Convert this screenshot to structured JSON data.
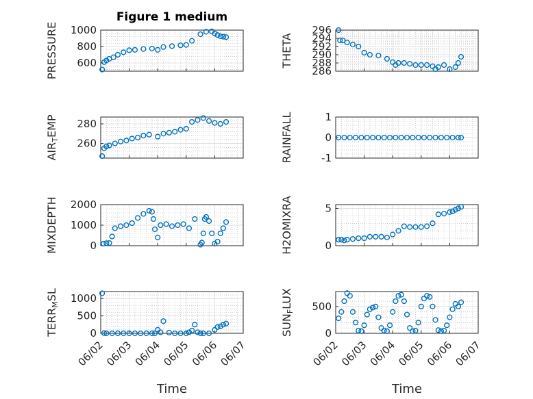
{
  "figure": {
    "title": "Figure 1 medium",
    "xlabel": "Time",
    "x_ticks": [
      "06/02",
      "06/03",
      "06/04",
      "06/05",
      "06/06",
      "06/07"
    ]
  },
  "chart_data": [
    {
      "type": "scatter",
      "ylabel": "PRESSURE",
      "ylim": [
        500,
        1000
      ],
      "yticks": [
        600,
        800,
        1000
      ],
      "x": [
        0.05,
        0.12,
        0.2,
        0.3,
        0.45,
        0.6,
        0.8,
        1.0,
        1.2,
        1.5,
        1.8,
        2.0,
        2.2,
        2.5,
        2.8,
        3.0,
        3.2,
        3.5,
        3.7,
        3.9,
        4.0,
        4.1,
        4.2,
        4.3,
        4.4
      ],
      "y": [
        520,
        610,
        630,
        650,
        670,
        700,
        730,
        755,
        760,
        770,
        775,
        760,
        795,
        805,
        815,
        820,
        870,
        950,
        980,
        985,
        960,
        940,
        925,
        920,
        915
      ]
    },
    {
      "type": "scatter",
      "ylabel": "THETA",
      "ylim": [
        286,
        296
      ],
      "yticks": [
        286,
        288,
        290,
        292,
        294,
        296
      ],
      "x": [
        0.1,
        0.15,
        0.25,
        0.4,
        0.6,
        0.8,
        1.0,
        1.2,
        1.5,
        1.8,
        2.0,
        2.1,
        2.2,
        2.4,
        2.6,
        2.8,
        3.0,
        3.2,
        3.4,
        3.5,
        3.6,
        3.8,
        4.0,
        4.2,
        4.3,
        4.4
      ],
      "y": [
        296,
        293.5,
        293.5,
        293,
        292.5,
        292,
        290.5,
        290,
        289.8,
        289,
        288.2,
        287.5,
        288,
        288,
        287.8,
        287.5,
        287.5,
        287.5,
        287.2,
        286.5,
        287,
        287.5,
        286.5,
        287,
        288,
        289.5
      ]
    },
    {
      "type": "scatter",
      "ylabel": "AIR_TEMP",
      "ylim": [
        245,
        287
      ],
      "yticks": [
        260,
        280
      ],
      "x": [
        0.05,
        0.12,
        0.2,
        0.3,
        0.5,
        0.7,
        0.9,
        1.1,
        1.3,
        1.5,
        1.7,
        2.0,
        2.2,
        2.4,
        2.6,
        2.8,
        3.0,
        3.2,
        3.4,
        3.6,
        3.8,
        4.0,
        4.2,
        4.4
      ],
      "y": [
        247,
        255,
        257,
        258,
        260,
        262,
        263,
        265,
        266,
        268,
        269,
        267,
        270,
        271,
        272,
        274,
        275,
        282,
        284,
        286,
        283,
        281,
        280,
        282
      ]
    },
    {
      "type": "scatter",
      "ylabel": "RAINFALL",
      "ylim": [
        -1,
        1
      ],
      "yticks": [
        -1,
        0,
        1
      ],
      "x": [
        0.1,
        0.3,
        0.5,
        0.7,
        0.9,
        1.1,
        1.3,
        1.5,
        1.7,
        1.9,
        2.1,
        2.3,
        2.5,
        2.7,
        2.9,
        3.1,
        3.3,
        3.5,
        3.7,
        3.9,
        4.1,
        4.3,
        4.4
      ],
      "y": [
        0,
        0,
        0,
        0,
        0,
        0,
        0,
        0,
        0,
        0,
        0,
        0,
        0,
        0,
        0,
        0,
        0,
        0,
        0,
        0,
        0,
        0,
        0
      ]
    },
    {
      "type": "scatter",
      "ylabel": "MIXDEPTH",
      "ylim": [
        0,
        2000
      ],
      "yticks": [
        0,
        1000,
        2000
      ],
      "x": [
        0.1,
        0.2,
        0.3,
        0.4,
        0.5,
        0.7,
        0.9,
        1.1,
        1.3,
        1.5,
        1.7,
        1.8,
        1.85,
        1.9,
        2.0,
        2.1,
        2.3,
        2.5,
        2.7,
        2.9,
        3.1,
        3.3,
        3.5,
        3.55,
        3.6,
        3.65,
        3.7,
        3.8,
        3.9,
        4.0,
        4.1,
        4.2,
        4.3,
        4.4
      ],
      "y": [
        100,
        120,
        130,
        450,
        850,
        950,
        1000,
        1100,
        1350,
        1550,
        1700,
        1650,
        1300,
        800,
        400,
        1000,
        1050,
        950,
        1000,
        1050,
        850,
        1300,
        50,
        150,
        600,
        1300,
        1400,
        1200,
        600,
        100,
        200,
        600,
        850,
        1150
      ]
    },
    {
      "type": "scatter",
      "ylabel": "H2OMIXRA",
      "ylim": [
        0,
        5.5
      ],
      "yticks": [
        0,
        5
      ],
      "x": [
        0.1,
        0.2,
        0.3,
        0.4,
        0.6,
        0.8,
        1.0,
        1.2,
        1.4,
        1.6,
        1.8,
        2.0,
        2.2,
        2.4,
        2.6,
        2.8,
        3.0,
        3.2,
        3.4,
        3.6,
        3.8,
        4.0,
        4.1,
        4.2,
        4.3,
        4.4
      ],
      "y": [
        0.8,
        0.8,
        0.7,
        0.8,
        0.9,
        1.0,
        1.0,
        1.2,
        1.2,
        1.2,
        1.1,
        1.5,
        2.0,
        2.6,
        2.5,
        2.5,
        2.5,
        2.6,
        3.0,
        4.2,
        4.3,
        4.5,
        4.6,
        4.8,
        5.0,
        5.2
      ]
    },
    {
      "type": "scatter",
      "ylabel": "TERR_MSL",
      "ylim": [
        0,
        1200
      ],
      "yticks": [
        0,
        500,
        1000
      ],
      "x": [
        0.05,
        0.12,
        0.2,
        0.4,
        0.6,
        0.8,
        1.0,
        1.2,
        1.4,
        1.6,
        1.8,
        1.9,
        2.0,
        2.1,
        2.2,
        2.4,
        2.6,
        2.8,
        3.0,
        3.1,
        3.2,
        3.3,
        3.4,
        3.5,
        3.6,
        3.8,
        4.0,
        4.1,
        4.2,
        4.3,
        4.4
      ],
      "y": [
        1150,
        5,
        0,
        0,
        0,
        0,
        0,
        0,
        0,
        0,
        0,
        0,
        100,
        30,
        350,
        20,
        0,
        0,
        0,
        30,
        80,
        250,
        30,
        0,
        0,
        0,
        100,
        180,
        200,
        250,
        280
      ]
    },
    {
      "type": "scatter",
      "ylabel": "SUN_FLUX",
      "ylim": [
        0,
        780
      ],
      "yticks": [
        0,
        500
      ],
      "x": [
        0.1,
        0.2,
        0.3,
        0.4,
        0.5,
        0.6,
        0.7,
        0.8,
        0.9,
        1.0,
        1.1,
        1.2,
        1.3,
        1.4,
        1.5,
        1.6,
        1.7,
        1.8,
        1.9,
        2.0,
        2.1,
        2.2,
        2.3,
        2.4,
        2.5,
        2.6,
        2.7,
        2.8,
        2.9,
        3.0,
        3.1,
        3.2,
        3.3,
        3.4,
        3.5,
        3.6,
        3.7,
        3.8,
        3.9,
        4.0,
        4.1,
        4.2,
        4.3,
        4.4
      ],
      "y": [
        280,
        400,
        600,
        750,
        700,
        400,
        200,
        50,
        40,
        150,
        350,
        450,
        480,
        500,
        300,
        100,
        50,
        40,
        150,
        400,
        600,
        700,
        720,
        600,
        350,
        100,
        40,
        50,
        200,
        500,
        650,
        700,
        680,
        500,
        250,
        60,
        40,
        50,
        150,
        300,
        450,
        550,
        500,
        580
      ]
    }
  ]
}
